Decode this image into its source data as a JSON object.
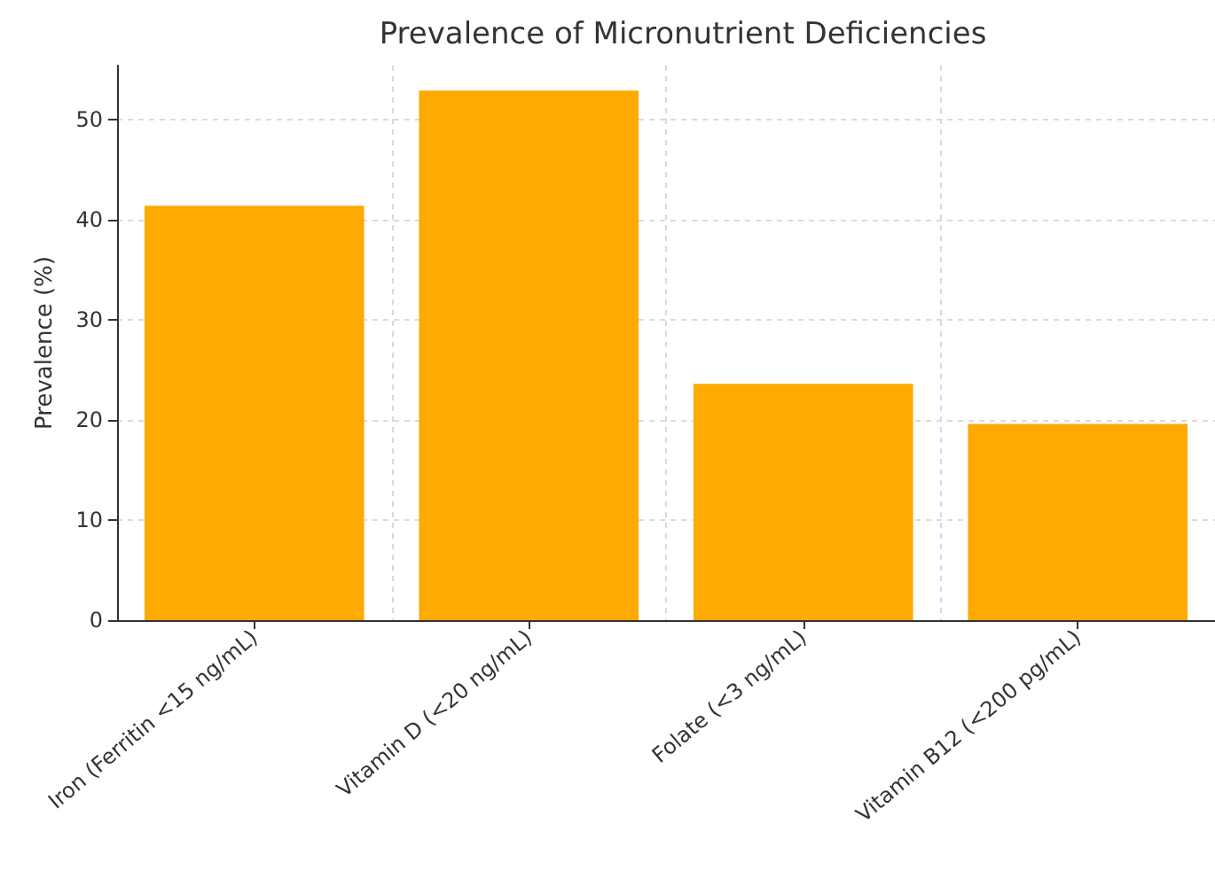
{
  "chart_data": {
    "type": "bar",
    "title": "Prevalence of Micronutrient Deficiencies",
    "ylabel": "Prevalence (%)",
    "categories": [
      "Iron (Ferritin <15 ng/mL)",
      "Vitamin D (<20 ng/mL)",
      "Folate (<3 ng/mL)",
      "Vitamin B12 (<200 pg/mL)"
    ],
    "values": [
      41.4,
      52.9,
      23.6,
      19.6
    ],
    "color": "#ffaa00",
    "ylim": [
      0,
      55.4
    ],
    "yticks": [
      0,
      10,
      20,
      30,
      40,
      50
    ],
    "grid": true
  }
}
